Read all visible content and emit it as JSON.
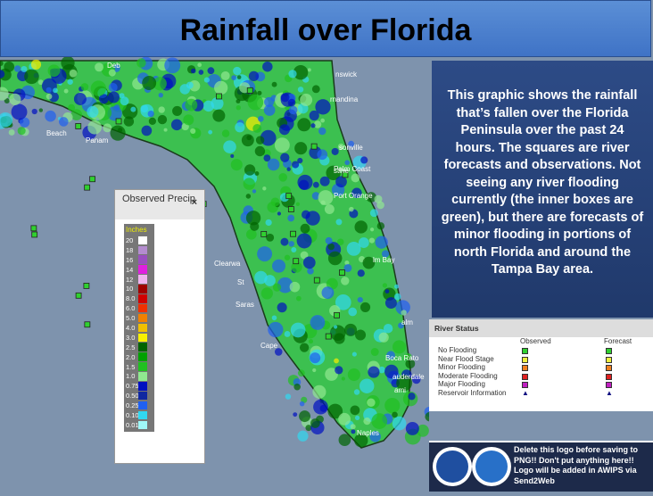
{
  "title": "Rainfall over Florida",
  "description": "This graphic shows the rainfall that’s fallen over the Florida Peninsula over the past 24 hours.  The squares are river forecasts and observations.  Not seeing any river flooding currently (the inner boxes are green), but there are forecasts of minor flooding in portions of north Florida and around the Tampa Bay area.",
  "legend": {
    "title": "Observed Precip",
    "close": "×",
    "unit": "Inches",
    "levels": [
      {
        "label": "20",
        "color": "#ffffff"
      },
      {
        "label": "18",
        "color": "#b48ccf"
      },
      {
        "label": "16",
        "color": "#9a4fc0"
      },
      {
        "label": "14",
        "color": "#e020e0"
      },
      {
        "label": "12",
        "color": "#f0b4f0"
      },
      {
        "label": "10",
        "color": "#a00000"
      },
      {
        "label": "8.0",
        "color": "#d00000"
      },
      {
        "label": "6.0",
        "color": "#f03000"
      },
      {
        "label": "5.0",
        "color": "#f08000"
      },
      {
        "label": "4.0",
        "color": "#f0c000"
      },
      {
        "label": "3.0",
        "color": "#f8f000"
      },
      {
        "label": "2.5",
        "color": "#006400"
      },
      {
        "label": "2.0",
        "color": "#00a000"
      },
      {
        "label": "1.5",
        "color": "#20c020"
      },
      {
        "label": "1.0",
        "color": "#90e890"
      },
      {
        "label": "0.75",
        "color": "#0010c0"
      },
      {
        "label": "0.50",
        "color": "#1028a0"
      },
      {
        "label": "0.25",
        "color": "#2060f0"
      },
      {
        "label": "0.10",
        "color": "#30d8f0"
      },
      {
        "label": "0.01",
        "color": "#a0f8f8"
      }
    ]
  },
  "river_status": {
    "title": "River Status",
    "observed": "Observed",
    "forecast": "Forecast",
    "rows": [
      {
        "label": "No Flooding",
        "color": "#30d030"
      },
      {
        "label": "Near Flood Stage",
        "color": "#f0f040"
      },
      {
        "label": "Minor Flooding",
        "color": "#f08020"
      },
      {
        "label": "Moderate Flooding",
        "color": "#e02020"
      },
      {
        "label": "Major Flooding",
        "color": "#c020c0"
      },
      {
        "label": "Reservoir Information",
        "color": "#101080"
      }
    ]
  },
  "logo_text": "Delete this logo before saving to PNG!!  Don't put anything here!! Logo will be added in AWIPS via Send2Web",
  "places": [
    "Deb",
    "nswick",
    "Beach",
    "Panam",
    "rnandina",
    "sonville",
    "stine",
    "Palm Coast",
    "Port Orange",
    "Clearwa",
    "St",
    "Saras",
    "lm Bay",
    "Cape",
    "alm",
    "Boca Rato",
    "auderdale",
    "ami",
    "Naples"
  ]
}
